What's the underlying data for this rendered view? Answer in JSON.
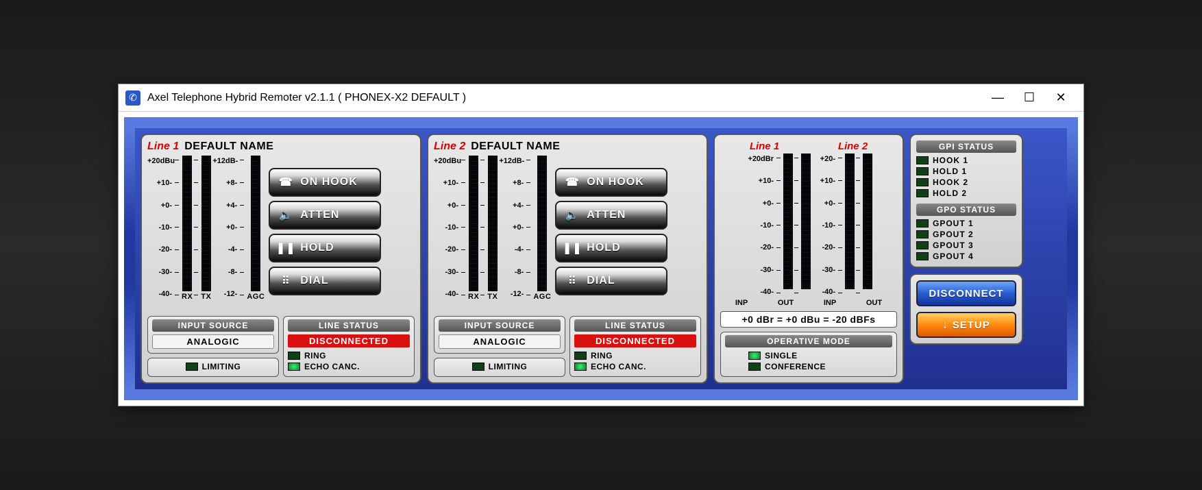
{
  "window": {
    "title": "Axel Telephone Hybrid Remoter v2.1.1 ( PHONEX-X2 DEFAULT )"
  },
  "lines": [
    {
      "line_label": "Line 1",
      "name": "DEFAULT NAME",
      "rxtx_scale": [
        "+20dBu",
        "+10-",
        "+0-",
        "-10-",
        "-20-",
        "-30-",
        "-40-"
      ],
      "agc_scale": [
        "+12dB-",
        "+8-",
        "+4-",
        "+0-",
        "-4-",
        "-8-",
        "-12-"
      ],
      "meter_labels": {
        "rx": "RX",
        "tx": "TX",
        "agc": "AGC"
      },
      "buttons": {
        "hook": "ON HOOK",
        "atten": "ATTEN",
        "hold": "HOLD",
        "dial": "DIAL"
      },
      "input_source": {
        "header": "INPUT SOURCE",
        "value": "ANALOGIC"
      },
      "limiting_label": "LIMITING",
      "line_status": {
        "header": "LINE STATUS",
        "value": "DISCONNECTED",
        "ring": "RING",
        "echo": "ECHO CANC."
      },
      "rx_level": 0,
      "tx_level": 0,
      "agc_level": 0,
      "echo_on": true
    },
    {
      "line_label": "Line 2",
      "name": "DEFAULT NAME",
      "rxtx_scale": [
        "+20dBu",
        "+10-",
        "+0-",
        "-10-",
        "-20-",
        "-30-",
        "-40-"
      ],
      "agc_scale": [
        "+12dB-",
        "+8-",
        "+4-",
        "+0-",
        "-4-",
        "-8-",
        "-12-"
      ],
      "meter_labels": {
        "rx": "RX",
        "tx": "TX",
        "agc": "AGC"
      },
      "buttons": {
        "hook": "ON HOOK",
        "atten": "ATTEN",
        "hold": "HOLD",
        "dial": "DIAL"
      },
      "input_source": {
        "header": "INPUT SOURCE",
        "value": "ANALOGIC"
      },
      "limiting_label": "LIMITING",
      "line_status": {
        "header": "LINE STATUS",
        "value": "DISCONNECTED",
        "ring": "RING",
        "echo": "ECHO CANC."
      },
      "rx_level": 0,
      "tx_level": 0,
      "agc_level": 0,
      "echo_on": true
    }
  ],
  "levels": {
    "line1_label": "Line 1",
    "line2_label": "Line 2",
    "scale1": [
      "+20dBr",
      "+10-",
      "+0-",
      "-10-",
      "-20-",
      "-30-",
      "-40-"
    ],
    "scale2": [
      "+20-",
      "+10-",
      "+0-",
      "-10-",
      "-20-",
      "-30-",
      "-40-"
    ],
    "captions": {
      "inp": "INP",
      "out": "OUT"
    },
    "ref_text": "+0 dBr = +0 dBu = -20 dBFs",
    "op_mode": {
      "header": "OPERATIVE MODE",
      "single": "SINGLE",
      "conf": "CONFERENCE",
      "single_on": true,
      "conf_on": false
    }
  },
  "gpi": {
    "header": "GPI STATUS",
    "items": [
      "HOOK  1",
      "HOLD  1",
      "HOOK  2",
      "HOLD  2"
    ]
  },
  "gpo": {
    "header": "GPO STATUS",
    "items": [
      "GPOUT 1",
      "GPOUT 2",
      "GPOUT 3",
      "GPOUT 4"
    ]
  },
  "actions": {
    "disconnect": "DISCONNECT",
    "setup": "SETUP"
  }
}
